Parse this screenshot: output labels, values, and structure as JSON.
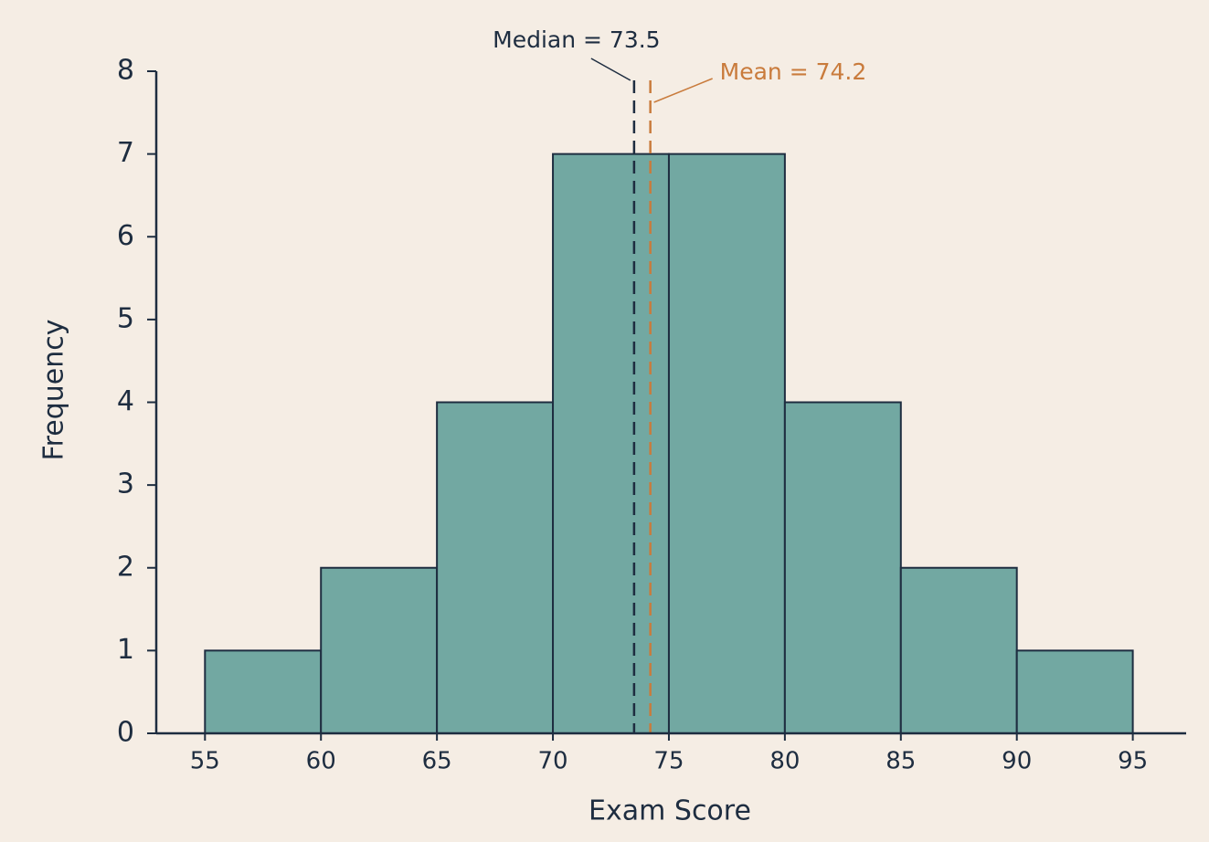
{
  "chart_data": {
    "type": "histogram",
    "xlabel": "Exam Score",
    "ylabel": "Frequency",
    "bins": [
      55,
      60,
      65,
      70,
      75,
      80,
      85,
      90,
      95
    ],
    "values": [
      1,
      2,
      4,
      7,
      7,
      4,
      2,
      1
    ],
    "color": "#72a8a2",
    "edgecolor": "#1e2d40",
    "xlim": [
      52.9,
      97.3
    ],
    "ylim": [
      0,
      8
    ],
    "xticks": [
      55,
      60,
      65,
      70,
      75,
      80,
      85,
      90,
      95
    ],
    "yticks": [
      0,
      1,
      2,
      3,
      4,
      5,
      6,
      7,
      8
    ],
    "annotations": [
      {
        "label": "Median = 73.5",
        "value": 73.5,
        "color": "#1e2d40"
      },
      {
        "label": "Mean = 74.2",
        "value": 74.2,
        "color": "#c97b3c"
      }
    ]
  }
}
